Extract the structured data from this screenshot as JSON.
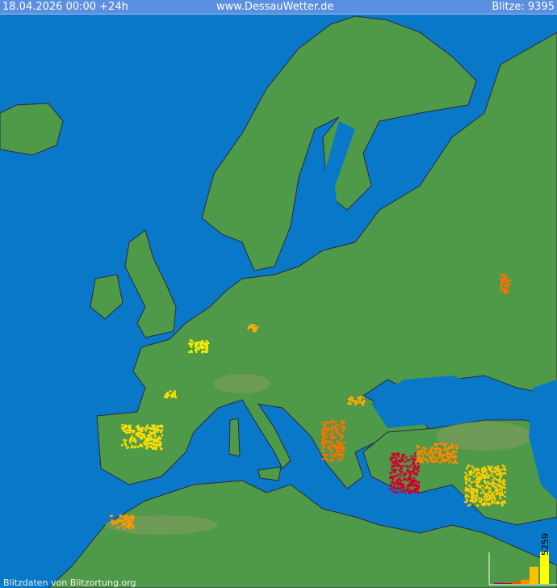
{
  "header": {
    "datetime": "18.04.2026 00:00 +24h",
    "site": "www.DessauWetter.de",
    "count_label": "Blitze: 9395"
  },
  "footer": {
    "credit": "Blitzdaten von Blitzortung.org"
  },
  "colors": {
    "sea": "#0a78c8",
    "land": "#4e9a48",
    "highland": "#7a9a5a",
    "header": "#5b8fe0",
    "borders": "#2a2a40"
  },
  "legend_histogram": {
    "max_label": "5259",
    "bars": [
      {
        "color": "#8a1080",
        "value": 186
      },
      {
        "color": "#c00020",
        "value": 100
      },
      {
        "color": "#ff5000",
        "value": 350
      },
      {
        "color": "#ff8c00",
        "value": 700
      },
      {
        "color": "#ffc000",
        "value": 2800
      },
      {
        "color": "#ffff00",
        "value": 5259
      }
    ]
  },
  "strike_clusters": [
    {
      "region": "France north",
      "color": "#ffee00"
    },
    {
      "region": "France west",
      "color": "#ffdd00"
    },
    {
      "region": "Spain",
      "color": "#ffdd00"
    },
    {
      "region": "Germany",
      "color": "#ffaa00"
    },
    {
      "region": "Romania",
      "color": "#ffaa00"
    },
    {
      "region": "Balkans",
      "color": "#ff7000"
    },
    {
      "region": "Turkey",
      "color": "#ff8800"
    },
    {
      "region": "Turkey south",
      "color": "#d00030"
    },
    {
      "region": "Iraq/Syria",
      "color": "#ffcc00"
    },
    {
      "region": "Russia",
      "color": "#ff7000"
    },
    {
      "region": "Morocco/Algeria",
      "color": "#ff9900"
    }
  ]
}
